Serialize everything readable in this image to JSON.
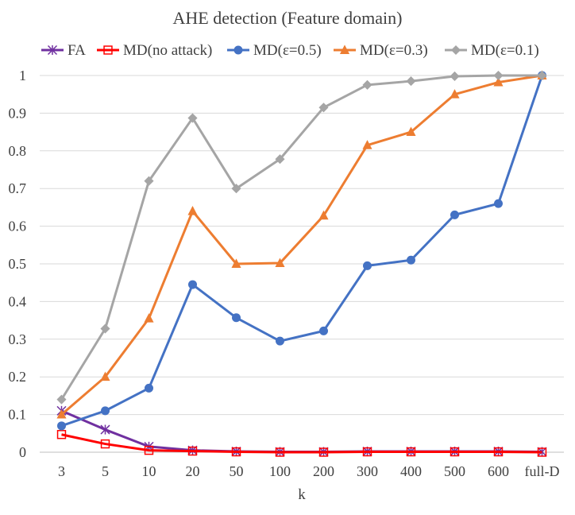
{
  "chart_data": {
    "type": "line",
    "title": "AHE detection (Feature domain)",
    "xlabel": "k",
    "ylabel": "",
    "categories": [
      "3",
      "5",
      "10",
      "20",
      "50",
      "100",
      "200",
      "300",
      "400",
      "500",
      "600",
      "full-D"
    ],
    "ylim": [
      0,
      1
    ],
    "yticks": [
      "0",
      "0.1",
      "0.2",
      "0.3",
      "0.4",
      "0.5",
      "0.6",
      "0.7",
      "0.8",
      "0.9",
      "1"
    ],
    "grid": true,
    "legend_position": "top",
    "series": [
      {
        "name": "FA",
        "color": "#7030a0",
        "marker": "star",
        "values": [
          0.11,
          0.06,
          0.015,
          0.005,
          0.002,
          0.001,
          0.001,
          0.002,
          0.002,
          0.002,
          0.002,
          0.001
        ]
      },
      {
        "name": "MD(no attack)",
        "color": "#ff0000",
        "marker": "square-open",
        "values": [
          0.047,
          0.022,
          0.005,
          0.003,
          0.001,
          0.0,
          0.0,
          0.001,
          0.001,
          0.001,
          0.001,
          0.0
        ]
      },
      {
        "name": "MD(ε=0.5)",
        "color": "#4472c4",
        "marker": "circle",
        "values": [
          0.07,
          0.11,
          0.17,
          0.445,
          0.357,
          0.295,
          0.322,
          0.495,
          0.51,
          0.63,
          0.66,
          1.0
        ]
      },
      {
        "name": "MD(ε=0.3)",
        "color": "#ed7d31",
        "marker": "triangle",
        "values": [
          0.1,
          0.2,
          0.355,
          0.64,
          0.5,
          0.502,
          0.628,
          0.815,
          0.85,
          0.95,
          0.982,
          1.0
        ]
      },
      {
        "name": "MD(ε=0.1)",
        "color": "#a5a5a5",
        "marker": "diamond",
        "values": [
          0.14,
          0.328,
          0.72,
          0.887,
          0.7,
          0.778,
          0.915,
          0.975,
          0.985,
          0.998,
          1.0,
          1.0
        ]
      }
    ]
  }
}
